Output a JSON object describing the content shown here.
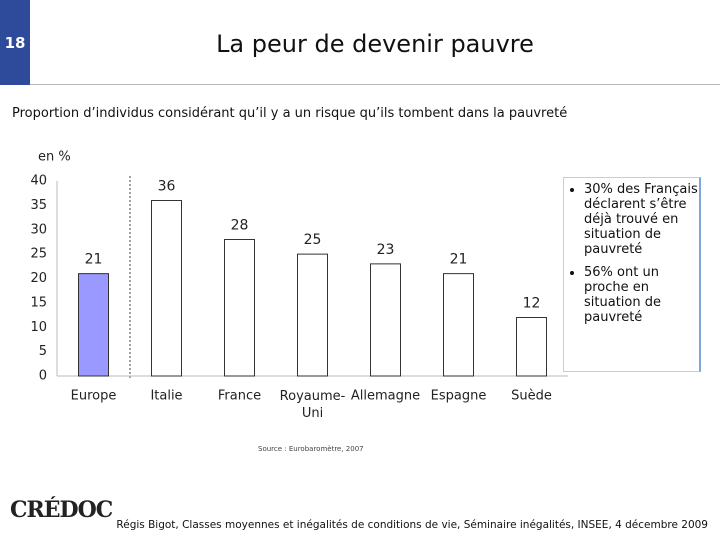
{
  "slide_number": "18",
  "title": "La peur de devenir pauvre",
  "subtitle": "Proportion d’individus considérant qu’il y a un risque qu’ils tombent dans la pauvreté",
  "bullets": [
    "30% des Français déclarent s’être déjà trouvé en situation de pauvreté",
    "56% ont un proche en situation de pauvreté"
  ],
  "source": "Source : Eurobaromètre, 2007",
  "logo": "CRÉDOC",
  "footer": "Régis Bigot, Classes moyennes et inégalités de conditions de vie, Séminaire inégalités, INSEE, 4 décembre 2009",
  "chart_data": {
    "type": "bar",
    "y_label": "en %",
    "categories": [
      "Europe",
      "Italie",
      "France",
      "Royaume-Uni",
      "Allemagne",
      "Espagne",
      "Suède"
    ],
    "values": [
      21,
      36,
      28,
      25,
      23,
      21,
      12
    ],
    "colors": [
      "#9999ff",
      "#ffffff",
      "#ffffff",
      "#ffffff",
      "#ffffff",
      "#ffffff",
      "#ffffff"
    ],
    "ylim": [
      0,
      40
    ],
    "yticks": [
      0,
      5,
      10,
      15,
      20,
      25,
      30,
      35,
      40
    ],
    "grid": false
  }
}
